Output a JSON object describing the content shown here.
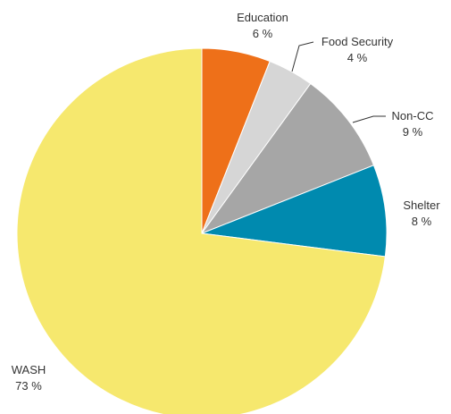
{
  "chart_data": {
    "type": "pie",
    "unit": "%",
    "slices": [
      {
        "label": "Education",
        "value": 6,
        "value_text": "6 %",
        "color": "#EE7019"
      },
      {
        "label": "Food Security",
        "value": 4,
        "value_text": "4 %",
        "color": "#D6D6D6"
      },
      {
        "label": "Non-CC",
        "value": 9,
        "value_text": "9 %",
        "color": "#A6A6A6"
      },
      {
        "label": "Shelter",
        "value": 8,
        "value_text": "8 %",
        "color": "#008AAF"
      },
      {
        "label": "WASH",
        "value": 73,
        "value_text": "73 %",
        "color": "#F6E86E"
      }
    ]
  }
}
